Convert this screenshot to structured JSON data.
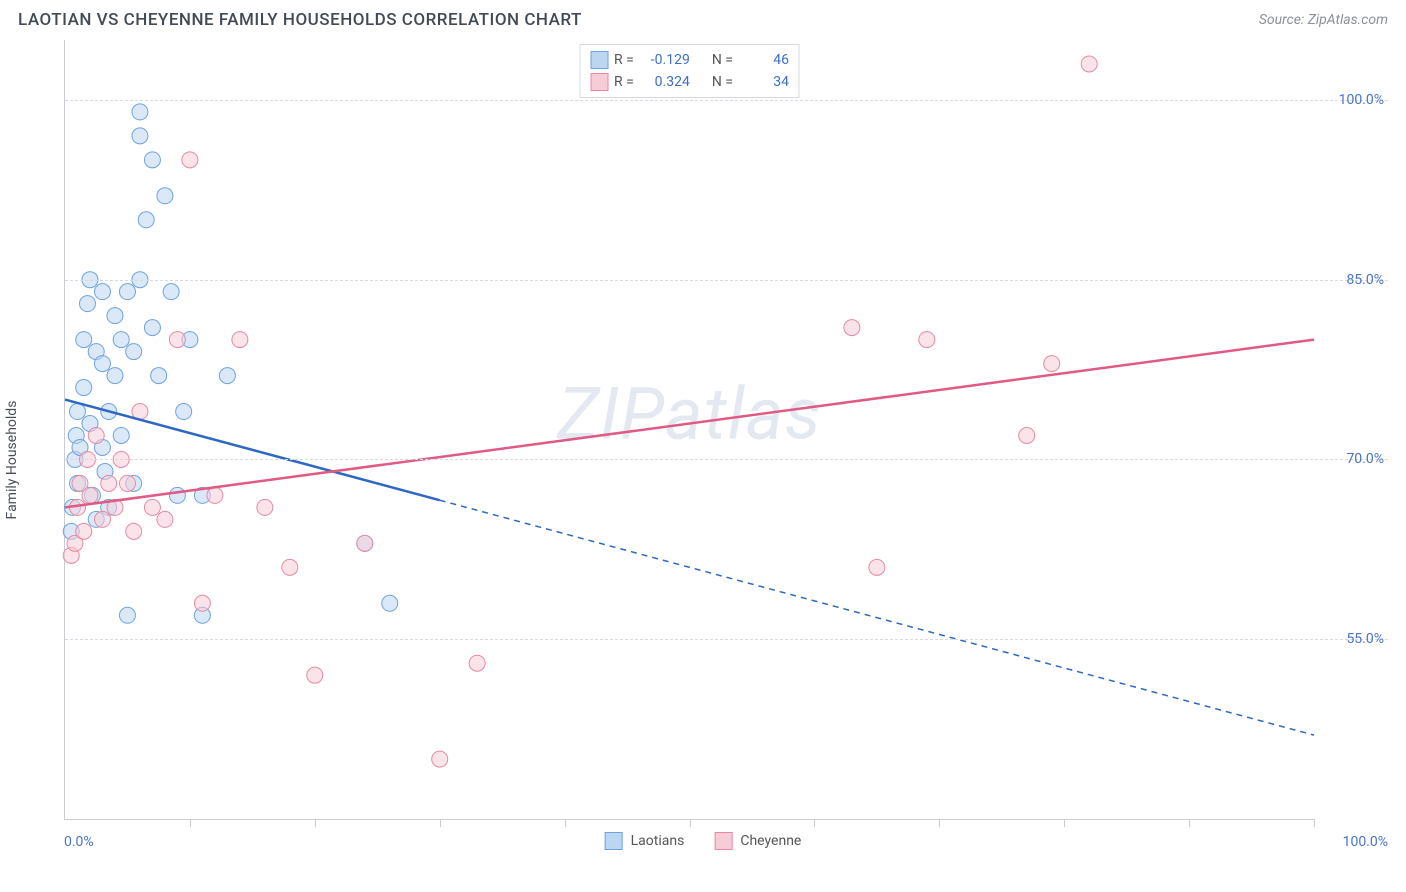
{
  "header": {
    "title": "LAOTIAN VS CHEYENNE FAMILY HOUSEHOLDS CORRELATION CHART",
    "source": "Source: ZipAtlas.com"
  },
  "chart": {
    "type": "scatter",
    "y_axis_label": "Family Households",
    "watermark": "ZIPatlas",
    "x_range": [
      0,
      100
    ],
    "y_range": [
      40,
      105
    ],
    "x_grid_steps": [
      0,
      10,
      20,
      30,
      40,
      50,
      60,
      70,
      80,
      90,
      100
    ],
    "y_ticks": [
      {
        "value": 55.0,
        "label": "55.0%"
      },
      {
        "value": 70.0,
        "label": "70.0%"
      },
      {
        "value": 85.0,
        "label": "85.0%"
      },
      {
        "value": 100.0,
        "label": "100.0%"
      }
    ],
    "x_min_label": "0.0%",
    "x_max_label": "100.0%",
    "grid_color": "#d6d9de",
    "axis_color": "#c9ccd1",
    "background_color": "#ffffff",
    "series": [
      {
        "name": "Laotians",
        "fill": "#bcd6f2",
        "stroke": "#6fa3dd",
        "marker_radius": 8,
        "trend": {
          "x1": 0,
          "y1": 75,
          "x2": 100,
          "y2": 47,
          "solid_until_x": 30,
          "color": "#2f68c4",
          "width": 2.5
        },
        "points": [
          [
            0.5,
            64
          ],
          [
            0.6,
            66
          ],
          [
            0.8,
            70
          ],
          [
            0.9,
            72
          ],
          [
            1,
            74
          ],
          [
            1,
            68
          ],
          [
            1.2,
            71
          ],
          [
            1.5,
            76
          ],
          [
            1.5,
            80
          ],
          [
            1.8,
            83
          ],
          [
            2,
            85
          ],
          [
            2,
            73
          ],
          [
            2.2,
            67
          ],
          [
            2.5,
            65
          ],
          [
            2.5,
            79
          ],
          [
            3,
            84
          ],
          [
            3,
            78
          ],
          [
            3,
            71
          ],
          [
            3.2,
            69
          ],
          [
            3.5,
            74
          ],
          [
            3.5,
            66
          ],
          [
            4,
            82
          ],
          [
            4,
            77
          ],
          [
            4.5,
            80
          ],
          [
            4.5,
            72
          ],
          [
            5,
            84
          ],
          [
            5,
            57
          ],
          [
            5.5,
            79
          ],
          [
            5.5,
            68
          ],
          [
            6,
            97
          ],
          [
            6,
            85
          ],
          [
            6.5,
            90
          ],
          [
            7,
            95
          ],
          [
            7,
            81
          ],
          [
            7.5,
            77
          ],
          [
            8,
            92
          ],
          [
            8.5,
            84
          ],
          [
            9,
            67
          ],
          [
            9.5,
            74
          ],
          [
            10,
            80
          ],
          [
            11,
            57
          ],
          [
            11,
            67
          ],
          [
            13,
            77
          ],
          [
            24,
            63
          ],
          [
            26,
            58
          ],
          [
            6,
            99
          ]
        ]
      },
      {
        "name": "Cheyenne",
        "fill": "#f6cdd7",
        "stroke": "#e68aa3",
        "marker_radius": 8,
        "trend": {
          "x1": 0,
          "y1": 66,
          "x2": 100,
          "y2": 80,
          "solid_until_x": 100,
          "color": "#e05a84",
          "width": 2.5
        },
        "points": [
          [
            0.5,
            62
          ],
          [
            0.8,
            63
          ],
          [
            1,
            66
          ],
          [
            1.2,
            68
          ],
          [
            1.5,
            64
          ],
          [
            1.8,
            70
          ],
          [
            2,
            67
          ],
          [
            2.5,
            72
          ],
          [
            3,
            65
          ],
          [
            3.5,
            68
          ],
          [
            4,
            66
          ],
          [
            4.5,
            70
          ],
          [
            5,
            68
          ],
          [
            5.5,
            64
          ],
          [
            6,
            74
          ],
          [
            7,
            66
          ],
          [
            8,
            65
          ],
          [
            9,
            80
          ],
          [
            10,
            95
          ],
          [
            11,
            58
          ],
          [
            12,
            67
          ],
          [
            14,
            80
          ],
          [
            16,
            66
          ],
          [
            18,
            61
          ],
          [
            20,
            52
          ],
          [
            24,
            63
          ],
          [
            30,
            45
          ],
          [
            33,
            53
          ],
          [
            63,
            81
          ],
          [
            65,
            61
          ],
          [
            69,
            80
          ],
          [
            77,
            72
          ],
          [
            79,
            78
          ],
          [
            82,
            103
          ]
        ]
      }
    ],
    "legend_top": [
      {
        "swatch_fill": "#bcd6f2",
        "swatch_stroke": "#6fa3dd",
        "r_label": "R =",
        "r_value": "-0.129",
        "n_label": "N =",
        "n_value": "46"
      },
      {
        "swatch_fill": "#f6cdd7",
        "swatch_stroke": "#e68aa3",
        "r_label": "R =",
        "r_value": "0.324",
        "n_label": "N =",
        "n_value": "34"
      }
    ],
    "legend_bottom": [
      {
        "swatch_fill": "#bcd6f2",
        "swatch_stroke": "#6fa3dd",
        "label": "Laotians"
      },
      {
        "swatch_fill": "#f6cdd7",
        "swatch_stroke": "#e68aa3",
        "label": "Cheyenne"
      }
    ]
  }
}
